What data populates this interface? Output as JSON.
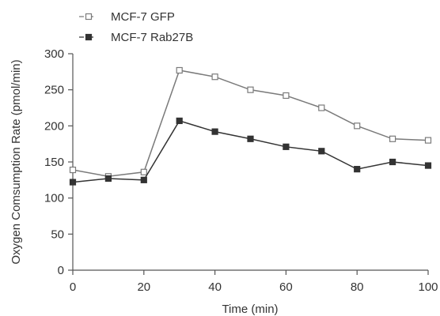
{
  "chart_data": {
    "type": "line",
    "title": "",
    "xlabel": "Time (min)",
    "ylabel": "Oxygen Comsumption Rate (pmol/min)",
    "xlim": [
      0,
      100
    ],
    "ylim": [
      0,
      300
    ],
    "xticks": [
      0,
      20,
      40,
      60,
      80,
      100
    ],
    "yticks": [
      0,
      50,
      100,
      150,
      200,
      250,
      300
    ],
    "grid": false,
    "legend_position": "top-left",
    "x": [
      0,
      10,
      20,
      30,
      40,
      50,
      60,
      70,
      80,
      90,
      100
    ],
    "series": [
      {
        "name": "MCF-7 GFP",
        "marker": "open-square",
        "color": "#7a7a7a",
        "values": [
          139,
          130,
          136,
          277,
          268,
          250,
          242,
          225,
          200,
          182,
          180
        ]
      },
      {
        "name": "MCF-7 Rab27B",
        "marker": "filled-square",
        "color": "#333333",
        "values": [
          122,
          127,
          125,
          207,
          192,
          182,
          171,
          165,
          140,
          150,
          145
        ]
      }
    ]
  }
}
